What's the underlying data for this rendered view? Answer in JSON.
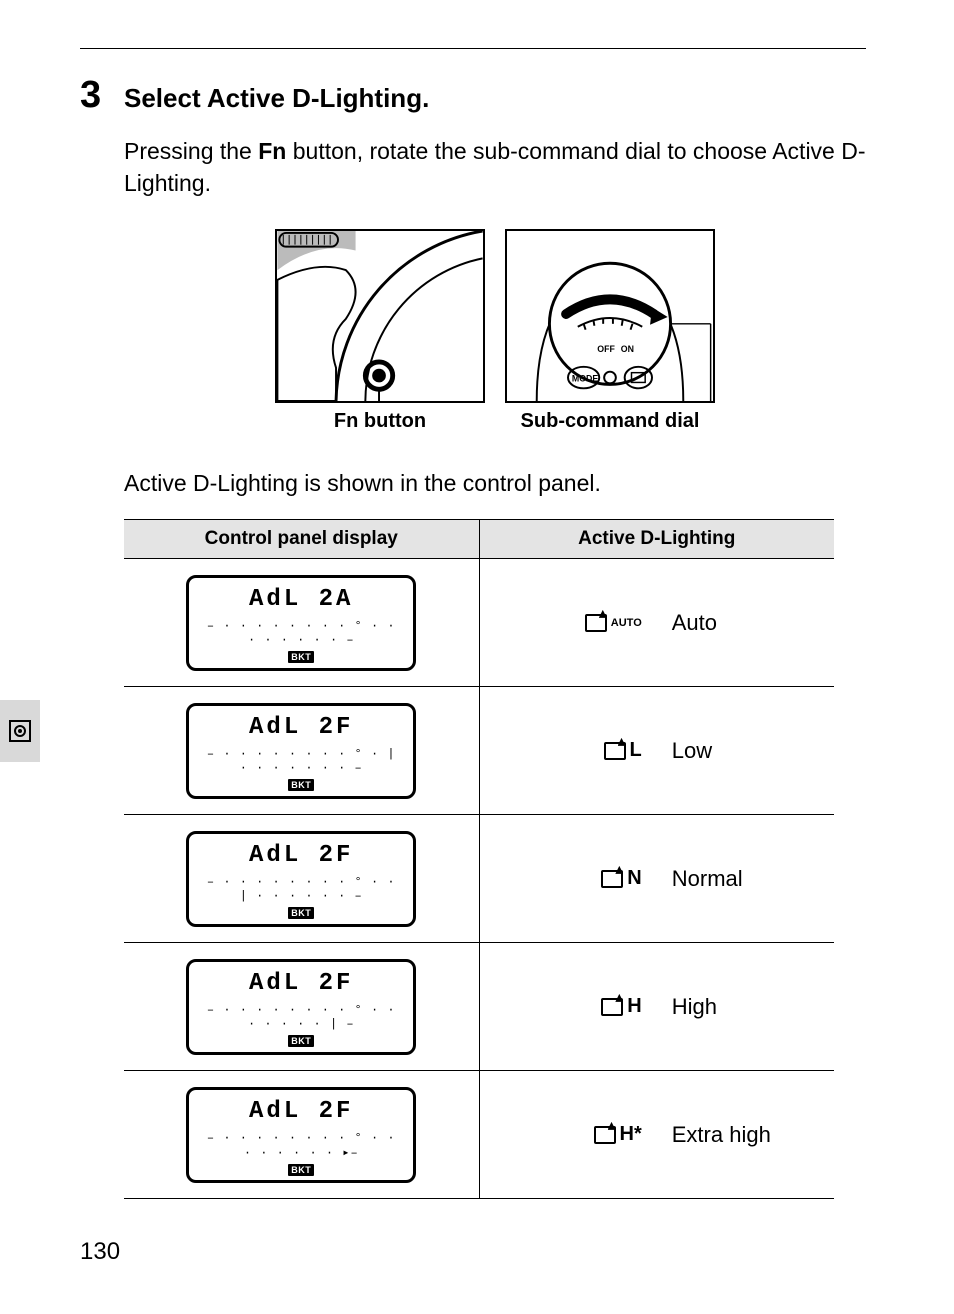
{
  "page_number": "130",
  "step": {
    "number": "3",
    "title": "Select Active D-Lighting."
  },
  "instruction_pre": "Pressing the ",
  "instruction_bold": "Fn",
  "instruction_post": " button, rotate the sub-command dial to choose Active D-Lighting.",
  "illust": {
    "left_label": "Fn button",
    "right_label": "Sub-command dial"
  },
  "panel_note": "Active D-Lighting is shown in the control panel.",
  "table": {
    "header_left": "Control panel display",
    "header_right": "Active D-Lighting",
    "bkt_label": "BKT",
    "rows": [
      {
        "lcd_top": "AdL  2A",
        "lcd_scale": "–  · · · · · · · · ° · · · · · · · ·  –",
        "icon_suffix": "AUTO",
        "icon_suffix_small": true,
        "label": "Auto"
      },
      {
        "lcd_top": "AdL  2F",
        "lcd_scale": "–  · · · · · · · · ° · | · · · · · · ·  –",
        "icon_suffix": "L",
        "icon_suffix_small": false,
        "label": "Low"
      },
      {
        "lcd_top": "AdL  2F",
        "lcd_scale": "–  · · · · · · · · ° · · | · · · · · ·  –",
        "icon_suffix": "N",
        "icon_suffix_small": false,
        "label": "Normal"
      },
      {
        "lcd_top": "AdL  2F",
        "lcd_scale": "–  · · · · · · · · ° · · · · · · · |  –",
        "icon_suffix": "H",
        "icon_suffix_small": false,
        "label": "High"
      },
      {
        "lcd_top": "AdL  2F",
        "lcd_scale": "–  · · · · · · · · ° · · · · · · · · ▸–",
        "icon_suffix": "H*",
        "icon_suffix_small": false,
        "label": "Extra high"
      }
    ]
  },
  "styling": {
    "page_bg": "#ffffff",
    "text_color": "#000000",
    "header_bg": "#e4e4e4",
    "tab_bg": "#d9d9d9",
    "border_color": "#000000",
    "body_fontsize_pt": 17,
    "stepnum_fontsize_pt": 29,
    "table_header_fontsize_pt": 14,
    "lcd_font": "monospace"
  }
}
